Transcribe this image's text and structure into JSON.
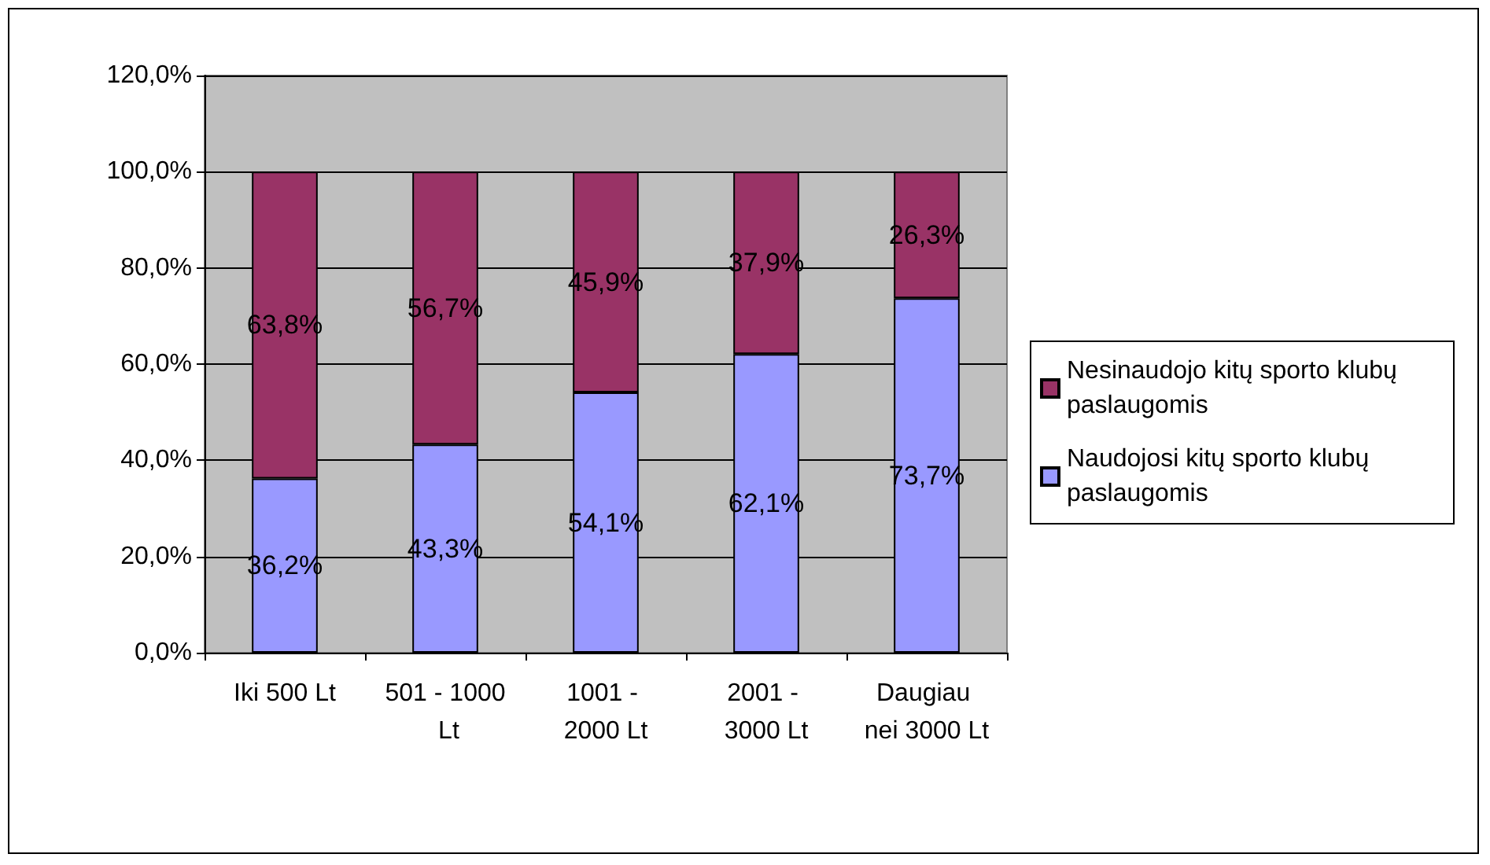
{
  "chart_data": {
    "type": "bar",
    "stacked": true,
    "categories": [
      "Iki 500 Lt",
      "501 - 1000 Lt",
      "1001 - 2000 Lt",
      "2001 - 3000 Lt",
      "Daugiau nei 3000 Lt"
    ],
    "series": [
      {
        "name": "Naudojosi kitų sporto klubų paslaugomis",
        "color": "#9999ff",
        "values": [
          36.2,
          43.3,
          54.1,
          62.1,
          73.7
        ],
        "value_labels": [
          "36,2%",
          "43,3%",
          "54,1%",
          "62,1%",
          "73,7%"
        ]
      },
      {
        "name": "Nesinaudojo kitų sporto klubų paslaugomis",
        "color": "#993366",
        "values": [
          63.8,
          56.7,
          45.9,
          37.9,
          26.3
        ],
        "value_labels": [
          "63,8%",
          "56,7%",
          "45,9%",
          "37,9%",
          "26,3%"
        ]
      }
    ],
    "ylim": [
      0,
      120
    ],
    "yticks": [
      {
        "value": 0,
        "label": "0,0%"
      },
      {
        "value": 20,
        "label": "20,0%"
      },
      {
        "value": 40,
        "label": "40,0%"
      },
      {
        "value": 60,
        "label": "60,0%"
      },
      {
        "value": 80,
        "label": "80,0%"
      },
      {
        "value": 100,
        "label": "100,0%"
      },
      {
        "value": 120,
        "label": "120,0%"
      }
    ],
    "grid": "y",
    "legend": "right"
  }
}
